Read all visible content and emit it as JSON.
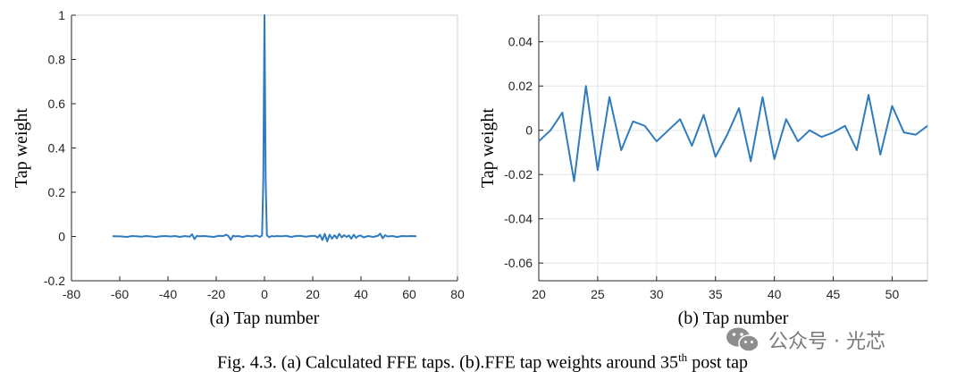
{
  "caption": {
    "pre": "Fig. 4.3. (a) Calculated FFE taps. (b).FFE tap weights around 35",
    "sup": "th",
    "post": " post tap"
  },
  "watermark": {
    "text": "公众号 · 光芯",
    "icon": "wechat-icon"
  },
  "chart_data": [
    {
      "type": "line",
      "sublabel": "(a)  Tap number",
      "ylabel": "Tap weight",
      "xlim": [
        -80,
        80
      ],
      "ylim": [
        -0.2,
        1
      ],
      "xticks": [
        -80,
        -60,
        -40,
        -20,
        0,
        20,
        40,
        60,
        80
      ],
      "yticks": [
        -0.2,
        0,
        0.2,
        0.4,
        0.6,
        0.8,
        1
      ],
      "ytick_labels": [
        "-0.2",
        "0",
        "0.2",
        "0.4",
        "0.6",
        "0.8",
        "1"
      ],
      "grid": false,
      "color": "#2f7bbd",
      "x": [
        -63,
        -61,
        -59,
        -57,
        -55,
        -53,
        -51,
        -49,
        -47,
        -45,
        -43,
        -41,
        -39,
        -37,
        -35,
        -33,
        -31,
        -30,
        -29,
        -28,
        -27,
        -25,
        -23,
        -21,
        -19,
        -17,
        -16,
        -15,
        -14,
        -13,
        -12,
        -11,
        -9,
        -7,
        -5,
        -4,
        -3,
        -2,
        -1,
        -0.5,
        0,
        0.5,
        1,
        2,
        3,
        4,
        5,
        7,
        9,
        11,
        13,
        15,
        17,
        19,
        21,
        22,
        23,
        24,
        25,
        26,
        27,
        28,
        29,
        30,
        31,
        32,
        33,
        34,
        35,
        36,
        37,
        38,
        39,
        40,
        41,
        43,
        45,
        47,
        48,
        49,
        50,
        51,
        53,
        55,
        57,
        59,
        61,
        63
      ],
      "y": [
        0.001,
        0.001,
        0.0,
        -0.002,
        0.002,
        0.001,
        -0.001,
        0.002,
        0.0,
        -0.002,
        0.001,
        0.002,
        0.0,
        0.002,
        -0.002,
        0.002,
        -0.001,
        0.01,
        -0.012,
        0.003,
        0.001,
        0.002,
        0.0,
        -0.002,
        0.003,
        0.002,
        0.008,
        0.003,
        -0.015,
        0.004,
        0.0,
        0.002,
        -0.002,
        0.003,
        0.0,
        0.004,
        0.003,
        -0.002,
        0.004,
        0.25,
        1.0,
        0.25,
        0.005,
        -0.003,
        0.002,
        0.0,
        0.002,
        0.001,
        0.003,
        -0.002,
        0.002,
        0.003,
        -0.001,
        0.002,
        0.003,
        -0.005,
        0.008,
        -0.016,
        0.012,
        -0.022,
        0.008,
        -0.01,
        0.006,
        -0.008,
        0.012,
        -0.004,
        0.006,
        -0.002,
        0.005,
        -0.01,
        0.008,
        -0.006,
        0.003,
        0.004,
        -0.004,
        0.002,
        -0.002,
        0.003,
        0.013,
        -0.008,
        0.006,
        0.0,
        0.002,
        -0.002,
        0.002,
        0.001,
        0.002,
        0.001
      ]
    },
    {
      "type": "line",
      "sublabel": "(b)  Tap number",
      "ylabel": "Tap weight",
      "xlim": [
        20,
        53
      ],
      "ylim": [
        -0.068,
        0.052
      ],
      "xticks": [
        20,
        25,
        30,
        35,
        40,
        45,
        50
      ],
      "yticks": [
        -0.06,
        -0.04,
        -0.02,
        0,
        0.02,
        0.04
      ],
      "ytick_labels": [
        "-0.06",
        "-0.04",
        "-0.02",
        "0",
        "0.02",
        "0.04"
      ],
      "grid": true,
      "color": "#2f7bbd",
      "x": [
        20,
        21,
        22,
        23,
        24,
        25,
        26,
        27,
        28,
        29,
        30,
        31,
        32,
        33,
        34,
        35,
        36,
        37,
        38,
        39,
        40,
        41,
        42,
        43,
        44,
        45,
        46,
        47,
        48,
        49,
        50,
        51,
        52,
        53
      ],
      "y": [
        -0.005,
        0.0,
        0.008,
        -0.023,
        0.02,
        -0.018,
        0.015,
        -0.009,
        0.004,
        0.002,
        -0.005,
        0.0,
        0.005,
        -0.007,
        0.007,
        -0.012,
        -0.002,
        0.01,
        -0.014,
        0.015,
        -0.013,
        0.005,
        -0.005,
        0.0,
        -0.003,
        -0.001,
        0.002,
        -0.009,
        0.016,
        -0.011,
        0.011,
        -0.001,
        -0.002,
        0.002
      ]
    }
  ]
}
